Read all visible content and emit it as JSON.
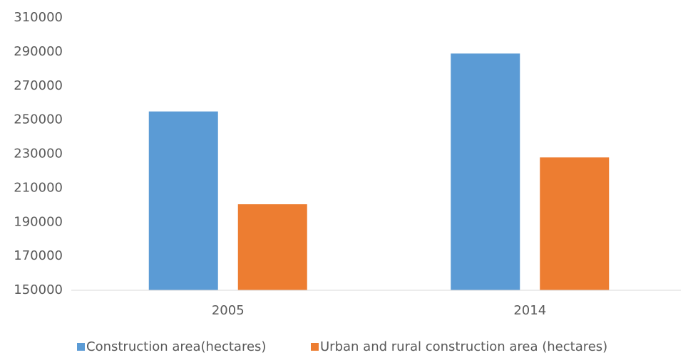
{
  "chart_data": {
    "type": "bar",
    "categories": [
      "2005",
      "2014"
    ],
    "series": [
      {
        "name": "Construction area(hectares)",
        "color": "#5b9bd5",
        "values": [
          255000,
          289000
        ]
      },
      {
        "name": "Urban and rural construction area (hectares)",
        "color": "#ed7d31",
        "values": [
          200500,
          228000
        ]
      }
    ],
    "ylim": [
      150000,
      310000
    ],
    "yticks": [
      150000,
      170000,
      190000,
      210000,
      230000,
      250000,
      270000,
      290000,
      310000
    ],
    "grid": false,
    "legend": "bottom"
  }
}
